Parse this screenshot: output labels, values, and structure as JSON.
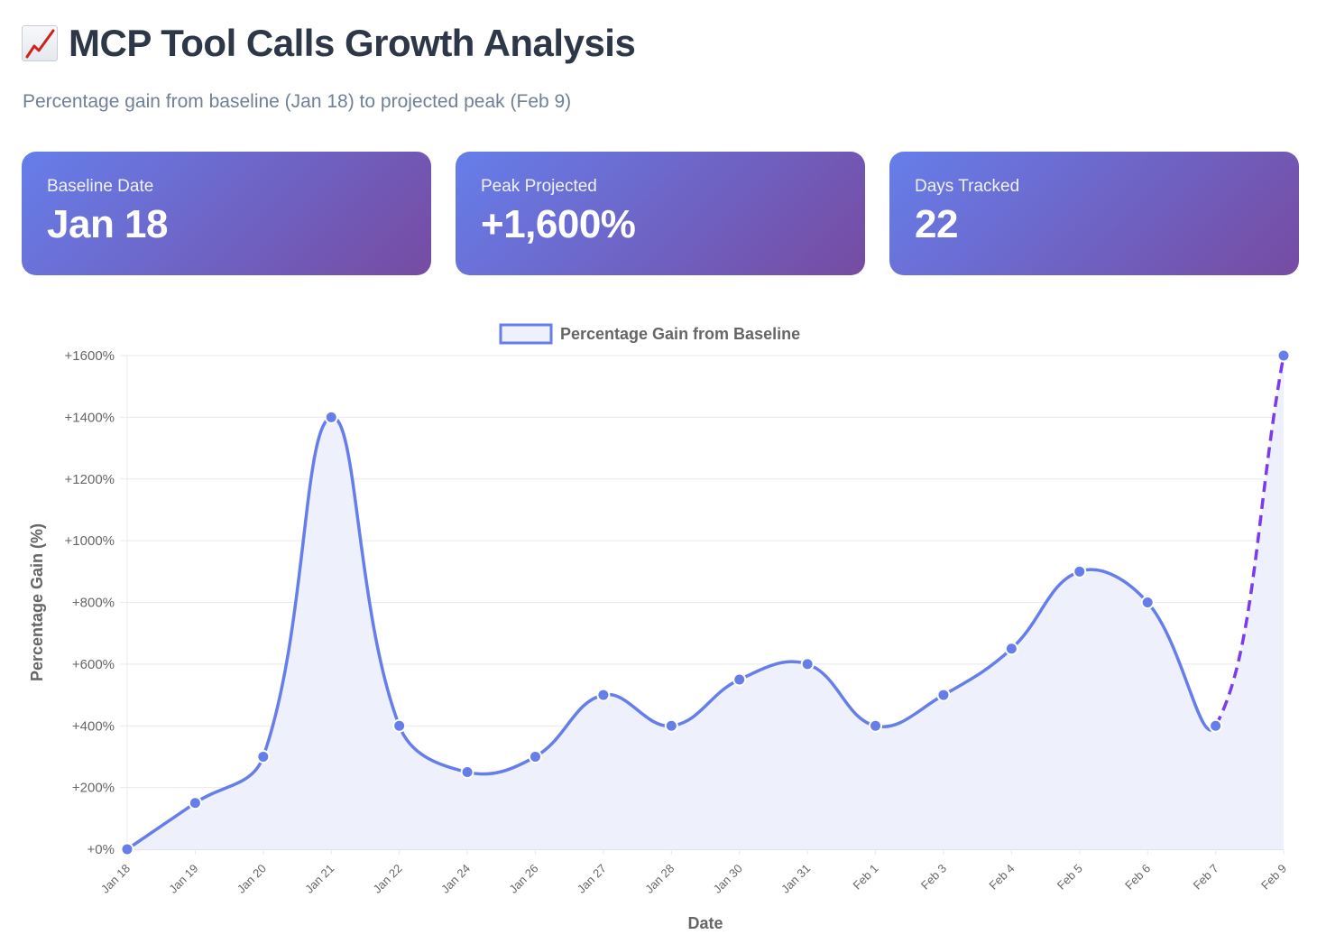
{
  "header": {
    "title_icon": "chart-increasing-icon",
    "title": "MCP Tool Calls Growth Analysis",
    "subtitle": "Percentage gain from baseline (Jan 18) to projected peak (Feb 9)"
  },
  "cards": [
    {
      "label": "Baseline Date",
      "value": "Jan 18"
    },
    {
      "label": "Peak Projected",
      "value": "+1,600%"
    },
    {
      "label": "Days Tracked",
      "value": "22"
    }
  ],
  "colors": {
    "card_gradient_start": "#667eea",
    "card_gradient_end": "#764ba2",
    "line": "#667eea",
    "fill": "#eef0fc",
    "projection": "#7c3aed",
    "grid": "#e9e9ee"
  },
  "chart_data": {
    "type": "area",
    "legend": {
      "label": "Percentage Gain from Baseline",
      "position": "top-center"
    },
    "xlabel": "Date",
    "ylabel": "Percentage Gain (%)",
    "ylim": [
      0,
      1600
    ],
    "yticks": [
      0,
      200,
      400,
      600,
      800,
      1000,
      1200,
      1400,
      1600
    ],
    "ytick_format": "+{v}%",
    "grid": true,
    "categories": [
      "Jan 18",
      "Jan 19",
      "Jan 20",
      "Jan 21",
      "Jan 22",
      "Jan 24",
      "Jan 26",
      "Jan 27",
      "Jan 28",
      "Jan 30",
      "Jan 31",
      "Feb 1",
      "Feb 3",
      "Feb 4",
      "Feb 5",
      "Feb 6",
      "Feb 7",
      "Feb 9"
    ],
    "series": [
      {
        "name": "Percentage Gain from Baseline",
        "values": [
          0,
          150,
          300,
          1400,
          400,
          250,
          300,
          500,
          400,
          550,
          600,
          400,
          500,
          650,
          900,
          800,
          400,
          1600
        ],
        "projected_from_index": 16
      }
    ]
  }
}
